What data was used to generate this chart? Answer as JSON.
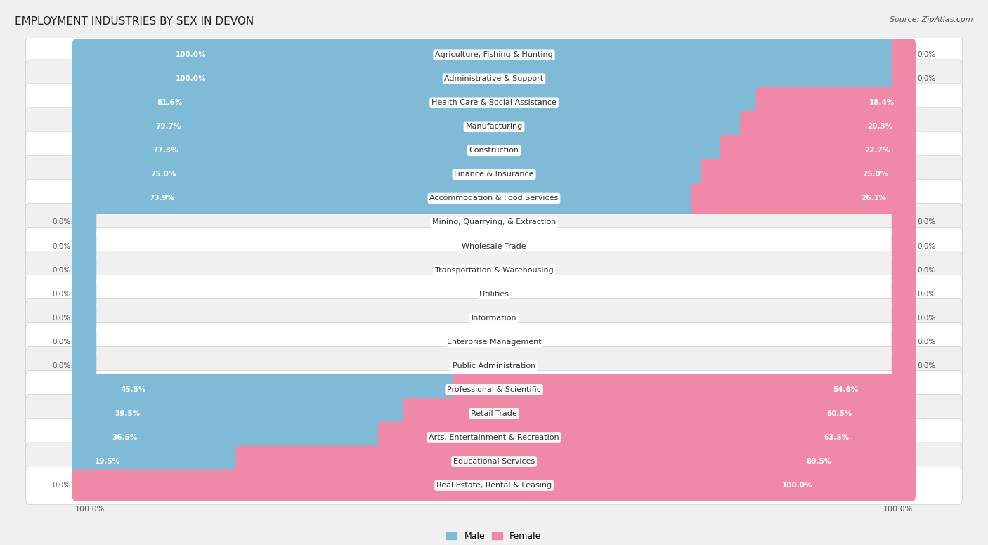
{
  "title": "EMPLOYMENT INDUSTRIES BY SEX IN DEVON",
  "source": "Source: ZipAtlas.com",
  "categories": [
    "Agriculture, Fishing & Hunting",
    "Administrative & Support",
    "Health Care & Social Assistance",
    "Manufacturing",
    "Construction",
    "Finance & Insurance",
    "Accommodation & Food Services",
    "Mining, Quarrying, & Extraction",
    "Wholesale Trade",
    "Transportation & Warehousing",
    "Utilities",
    "Information",
    "Enterprise Management",
    "Public Administration",
    "Professional & Scientific",
    "Retail Trade",
    "Arts, Entertainment & Recreation",
    "Educational Services",
    "Real Estate, Rental & Leasing"
  ],
  "male_pct": [
    100.0,
    100.0,
    81.6,
    79.7,
    77.3,
    75.0,
    73.9,
    0.0,
    0.0,
    0.0,
    0.0,
    0.0,
    0.0,
    0.0,
    45.5,
    39.5,
    36.5,
    19.5,
    0.0
  ],
  "female_pct": [
    0.0,
    0.0,
    18.4,
    20.3,
    22.7,
    25.0,
    26.1,
    0.0,
    0.0,
    0.0,
    0.0,
    0.0,
    0.0,
    0.0,
    54.6,
    60.5,
    63.5,
    80.5,
    100.0
  ],
  "male_color": "#7fbad6",
  "female_color": "#f088a8",
  "bg_color": "#f0f0f0",
  "row_color_even": "#ffffff",
  "row_color_odd": "#f0f0f0",
  "title_fontsize": 11,
  "label_fontsize": 8,
  "pct_fontsize": 7.5,
  "legend_fontsize": 9,
  "source_fontsize": 8
}
